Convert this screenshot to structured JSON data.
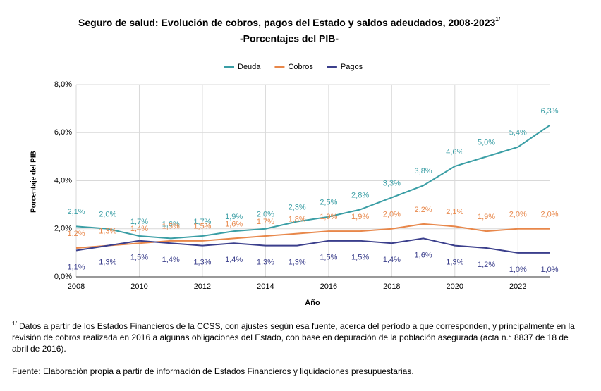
{
  "chart_data": {
    "type": "line",
    "title": "Seguro de salud: Evolución de cobros, pagos del Estado y saldos adeudados, 2008-2023",
    "title_note": "1/",
    "subtitle": "-Porcentajes del PIB-",
    "xlabel": "Año",
    "ylabel": "Porcentaje del PIB",
    "x": [
      2008,
      2009,
      2010,
      2011,
      2012,
      2013,
      2014,
      2015,
      2016,
      2017,
      2018,
      2019,
      2020,
      2021,
      2022,
      2023
    ],
    "xlim": [
      2008,
      2023
    ],
    "xticks": [
      2008,
      2010,
      2012,
      2014,
      2016,
      2018,
      2020,
      2022
    ],
    "ylim": [
      0,
      8
    ],
    "yticks": [
      {
        "value": 0,
        "label": "0,0%"
      },
      {
        "value": 2,
        "label": "2,0%"
      },
      {
        "value": 4,
        "label": "4,0%"
      },
      {
        "value": 6,
        "label": "6,0%"
      },
      {
        "value": 8,
        "label": "8,0%"
      }
    ],
    "grid": true,
    "series": [
      {
        "name": "Deuda",
        "color": "#3a9ea5",
        "values": [
          2.1,
          2.0,
          1.7,
          1.6,
          1.7,
          1.9,
          2.0,
          2.3,
          2.5,
          2.8,
          3.3,
          3.8,
          4.6,
          5.0,
          5.4,
          6.3
        ],
        "value_labels": [
          "2,1%",
          "2,0%",
          "1,7%",
          "1,6%",
          "1,7%",
          "1,9%",
          "2,0%",
          "2,3%",
          "2,5%",
          "2,8%",
          "3,3%",
          "3,8%",
          "4,6%",
          "5,0%",
          "5,4%",
          "6,3%"
        ]
      },
      {
        "name": "Cobros",
        "color": "#e8874a",
        "values": [
          1.2,
          1.3,
          1.4,
          1.5,
          1.5,
          1.6,
          1.7,
          1.8,
          1.9,
          1.9,
          2.0,
          2.2,
          2.1,
          1.9,
          2.0,
          2.0
        ],
        "value_labels": [
          "1,2%",
          "1,3%",
          "1,4%",
          "1,5%",
          "1,5%",
          "1,6%",
          "1,7%",
          "1,8%",
          "1,9%",
          "1,9%",
          "2,0%",
          "2,2%",
          "2,1%",
          "1,9%",
          "2,0%",
          "2,0%"
        ]
      },
      {
        "name": "Pagos",
        "color": "#3b3f8c",
        "values": [
          1.1,
          1.3,
          1.5,
          1.4,
          1.3,
          1.4,
          1.3,
          1.3,
          1.5,
          1.5,
          1.4,
          1.6,
          1.3,
          1.2,
          1.0,
          1.0
        ],
        "value_labels": [
          "1,1%",
          "1,3%",
          "1,5%",
          "1,4%",
          "1,3%",
          "1,4%",
          "1,3%",
          "1,3%",
          "1,5%",
          "1,5%",
          "1,4%",
          "1,6%",
          "1,3%",
          "1,2%",
          "1,0%",
          "1,0%"
        ]
      }
    ]
  },
  "notes": {
    "footnote_mark": "1/",
    "footnote": "Datos a partir de los Estados Financieros de la CCSS, con ajustes según esa fuente, acerca del período a que corresponden, y principalmente en la revisión de cobros realizada en 2016 a algunas obligaciones del Estado, con base en depuración de la población asegurada (acta n.° 8837 de 18 de abril de 2016).",
    "source": "Fuente: Elaboración propia a partir de información de Estados Financieros y liquidaciones presupuestarias."
  }
}
